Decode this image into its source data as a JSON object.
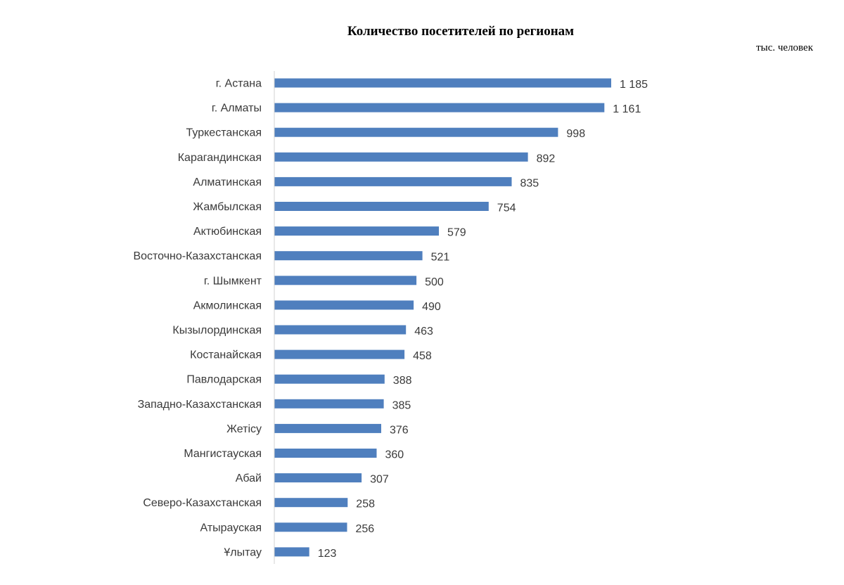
{
  "chart_data": {
    "type": "bar",
    "orientation": "horizontal",
    "title": "Количество посетителей по регионам",
    "unit": "тыс. человек",
    "categories": [
      "г. Астана",
      "г. Алматы",
      "Туркестанская",
      "Карагандинская",
      "Алматинская",
      "Жамбылская",
      "Актюбинская",
      "Восточно-Казахстанская",
      "г. Шымкент",
      "Акмолинская",
      "Кызылординская",
      "Костанайская",
      "Павлодарская",
      "Западно-Казахстанская",
      "Жетісу",
      "Мангистауская",
      "Абай",
      "Северо-Казахстанская",
      "Атырауская",
      "Ұлытау"
    ],
    "values": [
      1185,
      1161,
      998,
      892,
      835,
      754,
      579,
      521,
      500,
      490,
      463,
      458,
      388,
      385,
      376,
      360,
      307,
      258,
      256,
      123
    ],
    "value_labels": [
      "1 185",
      "1 161",
      "998",
      "892",
      "835",
      "754",
      "579",
      "521",
      "500",
      "490",
      "463",
      "458",
      "388",
      "385",
      "376",
      "360",
      "307",
      "258",
      "256",
      "123"
    ],
    "bar_color": "#4f7fbe",
    "axis_color": "#d0d0d0",
    "grid": false,
    "legend": "none"
  }
}
